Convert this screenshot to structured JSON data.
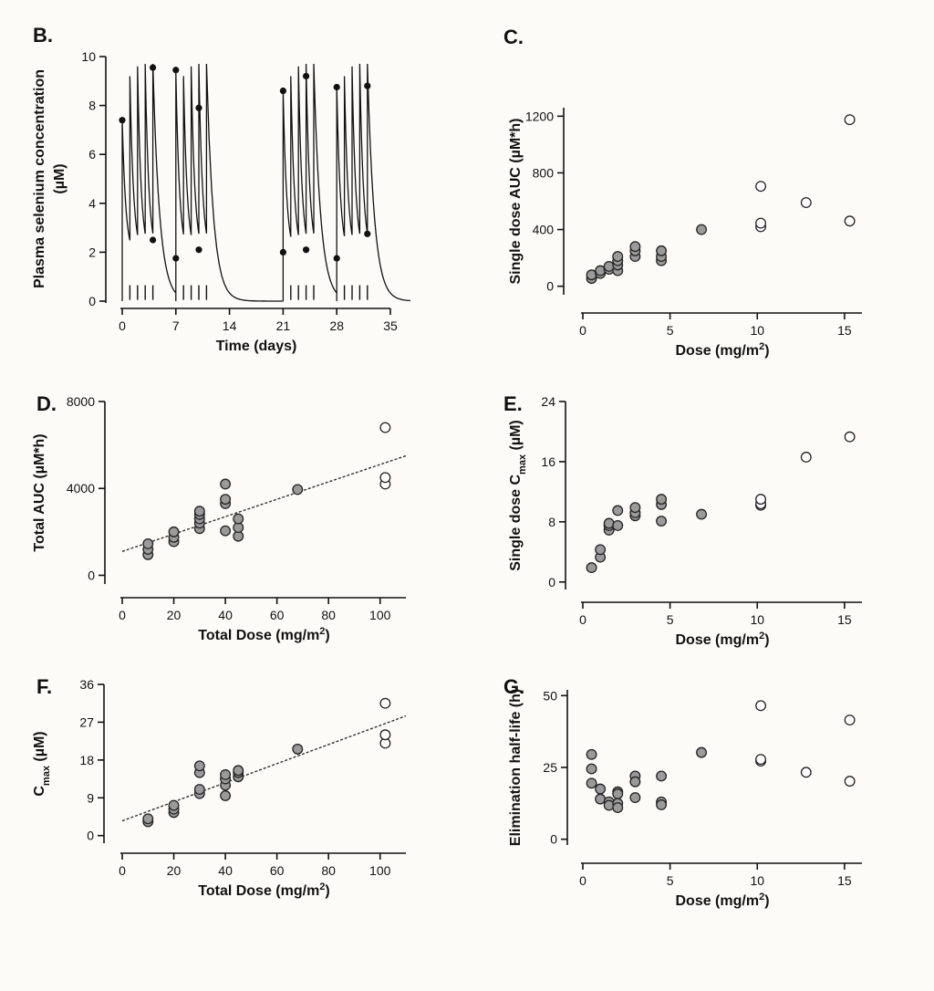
{
  "chart_data": [
    {
      "id": "B",
      "type": "line",
      "panel_label": "B.",
      "xlabel": "Time (days)",
      "ylabel_line1": "Plasma selenium concentration",
      "ylabel_line2": "(µM)",
      "xlim": [
        0,
        35
      ],
      "ylim": [
        0,
        10
      ],
      "xticks": [
        0,
        7,
        14,
        21,
        28,
        35
      ],
      "yticks": [
        0,
        2,
        4,
        6,
        8,
        10
      ],
      "dose_cycles": [
        {
          "start": 0,
          "doses": 5,
          "peaks": [
            7.4,
            9.2,
            9.6,
            9.7,
            9.7
          ],
          "min": 1.8
        },
        {
          "start": 7,
          "doses": 5,
          "peaks": [
            9.4,
            9.2,
            9.6,
            9.7,
            9.7
          ],
          "min": 1.8
        },
        {
          "start": 21,
          "doses": 5,
          "peaks": [
            8.6,
            9.2,
            9.6,
            9.7,
            9.7
          ],
          "min": 1.8
        },
        {
          "start": 28,
          "doses": 5,
          "peaks": [
            8.8,
            9.2,
            9.6,
            9.7,
            9.7
          ],
          "min": 1.8
        }
      ],
      "markers": [
        {
          "x": 0,
          "y": 7.4
        },
        {
          "x": 4,
          "y": 9.55
        },
        {
          "x": 4,
          "y": 2.5
        },
        {
          "x": 7,
          "y": 9.45
        },
        {
          "x": 7,
          "y": 1.75
        },
        {
          "x": 10,
          "y": 7.9
        },
        {
          "x": 10,
          "y": 2.1
        },
        {
          "x": 21,
          "y": 8.6
        },
        {
          "x": 21,
          "y": 2.0
        },
        {
          "x": 24,
          "y": 9.2
        },
        {
          "x": 24,
          "y": 2.1
        },
        {
          "x": 28,
          "y": 8.75
        },
        {
          "x": 28,
          "y": 1.75
        },
        {
          "x": 32,
          "y": 8.8
        },
        {
          "x": 32,
          "y": 2.75
        }
      ],
      "dose_times": [
        1,
        2,
        3,
        4,
        8,
        9,
        10,
        11,
        22,
        23,
        24,
        25,
        29,
        30,
        31,
        32
      ]
    },
    {
      "id": "C",
      "type": "scatter",
      "panel_label": "C.",
      "xlabel": "Dose (mg/m",
      "xlabel_sup": "2",
      "ylabel": "Single dose AUC (µM*h)",
      "xlim": [
        0,
        16
      ],
      "ylim": [
        -60,
        1260
      ],
      "xticks": [
        0,
        5,
        10,
        15
      ],
      "yticks": [
        0,
        400,
        800,
        1200
      ],
      "series": [
        {
          "name": "filled",
          "points": [
            [
              0.5,
              55
            ],
            [
              0.5,
              80
            ],
            [
              1,
              90
            ],
            [
              1,
              110
            ],
            [
              1.5,
              120
            ],
            [
              1.5,
              140
            ],
            [
              2,
              110
            ],
            [
              2,
              150
            ],
            [
              2,
              180
            ],
            [
              2,
              210
            ],
            [
              3,
              210
            ],
            [
              3,
              250
            ],
            [
              3,
              280
            ],
            [
              4.5,
              180
            ],
            [
              4.5,
              210
            ],
            [
              4.5,
              250
            ],
            [
              6.8,
              400
            ]
          ]
        },
        {
          "name": "open",
          "points": [
            [
              10.2,
              420
            ],
            [
              10.2,
              445
            ],
            [
              10.2,
              705
            ],
            [
              12.8,
              590
            ],
            [
              15.3,
              460
            ],
            [
              15.3,
              1175
            ]
          ]
        }
      ]
    },
    {
      "id": "D",
      "type": "scatter",
      "panel_label": "D.",
      "xlabel": "Total Dose (mg/m",
      "xlabel_sup": "2",
      "ylabel": "Total AUC (µM*h)",
      "xlim": [
        0,
        110
      ],
      "ylim": [
        -400,
        8000
      ],
      "xticks": [
        0,
        20,
        40,
        60,
        80,
        100
      ],
      "yticks": [
        0,
        4000,
        8000
      ],
      "fit_line": {
        "x": [
          0,
          110
        ],
        "y": [
          1100,
          5500
        ]
      },
      "series": [
        {
          "name": "filled",
          "points": [
            [
              10,
              950
            ],
            [
              10,
              1200
            ],
            [
              10,
              1450
            ],
            [
              20,
              1550
            ],
            [
              20,
              1750
            ],
            [
              20,
              2000
            ],
            [
              30,
              2150
            ],
            [
              30,
              2400
            ],
            [
              30,
              2600
            ],
            [
              30,
              2800
            ],
            [
              30,
              2950
            ],
            [
              40,
              2050
            ],
            [
              40,
              3300
            ],
            [
              40,
              3500
            ],
            [
              40,
              4200
            ],
            [
              45,
              1800
            ],
            [
              45,
              2200
            ],
            [
              45,
              2600
            ],
            [
              68,
              3950
            ]
          ]
        },
        {
          "name": "open",
          "points": [
            [
              102,
              4200
            ],
            [
              102,
              4500
            ],
            [
              102,
              6800
            ]
          ]
        }
      ]
    },
    {
      "id": "E",
      "type": "scatter",
      "panel_label": "E.",
      "xlabel": "Dose (mg/m",
      "xlabel_sup": "2",
      "ylabel": "Single dose C",
      "ylabel_sub": "max",
      "ylabel_unit": "(µM)",
      "xlim": [
        0,
        16
      ],
      "ylim": [
        -1,
        24
      ],
      "xticks": [
        0,
        5,
        10,
        15
      ],
      "yticks": [
        0,
        8,
        16,
        24
      ],
      "series": [
        {
          "name": "filled",
          "points": [
            [
              0.5,
              1.9
            ],
            [
              1,
              3.3
            ],
            [
              1,
              4.3
            ],
            [
              1.5,
              6.9
            ],
            [
              1.5,
              7.5
            ],
            [
              1.5,
              7.8
            ],
            [
              2,
              7.5
            ],
            [
              2,
              9.5
            ],
            [
              3,
              8.8
            ],
            [
              3,
              9.2
            ],
            [
              3,
              9.9
            ],
            [
              4.5,
              8.1
            ],
            [
              4.5,
              10.3
            ],
            [
              4.5,
              11
            ],
            [
              6.8,
              9
            ]
          ]
        },
        {
          "name": "open",
          "points": [
            [
              10.2,
              10.2
            ],
            [
              10.2,
              10.4
            ],
            [
              10.2,
              11
            ],
            [
              12.8,
              16.6
            ],
            [
              15.3,
              19.3
            ]
          ]
        }
      ]
    },
    {
      "id": "F",
      "type": "scatter",
      "panel_label": "F.",
      "xlabel": "Total Dose (mg/m",
      "xlabel_sup": "2",
      "ylabel": "C",
      "ylabel_sub": "max",
      "ylabel_unit": "(µM)",
      "xlim": [
        0,
        110
      ],
      "ylim": [
        -1.8,
        36
      ],
      "xticks": [
        0,
        20,
        40,
        60,
        80,
        100
      ],
      "yticks": [
        0,
        9,
        18,
        27,
        36
      ],
      "fit_line": {
        "x": [
          0,
          110
        ],
        "y": [
          3.5,
          28.5
        ]
      },
      "series": [
        {
          "name": "filled",
          "points": [
            [
              10,
              3.3
            ],
            [
              10,
              4
            ],
            [
              20,
              5.5
            ],
            [
              20,
              6.3
            ],
            [
              20,
              7.2
            ],
            [
              30,
              10
            ],
            [
              30,
              11
            ],
            [
              30,
              15
            ],
            [
              30,
              16.6
            ],
            [
              40,
              9.5
            ],
            [
              40,
              12
            ],
            [
              40,
              13.5
            ],
            [
              40,
              14.5
            ],
            [
              45,
              14
            ],
            [
              45,
              15
            ],
            [
              45,
              15.5
            ],
            [
              68,
              20.6
            ]
          ]
        },
        {
          "name": "open",
          "points": [
            [
              102,
              22
            ],
            [
              102,
              24
            ],
            [
              102,
              31.5
            ]
          ]
        }
      ]
    },
    {
      "id": "G",
      "type": "scatter",
      "panel_label": "G.",
      "xlabel": "Dose (mg/m",
      "xlabel_sup": "2",
      "ylabel": "Elimination half-life (h)",
      "xlim": [
        0,
        16
      ],
      "ylim": [
        -2,
        52
      ],
      "xticks": [
        0,
        5,
        10,
        15
      ],
      "yticks": [
        0,
        25,
        50
      ],
      "series": [
        {
          "name": "filled",
          "points": [
            [
              0.5,
              29.5
            ],
            [
              0.5,
              24.5
            ],
            [
              0.5,
              19.5
            ],
            [
              1,
              17.5
            ],
            [
              1,
              14
            ],
            [
              1.5,
              13
            ],
            [
              1.5,
              11.8
            ],
            [
              2,
              16.5
            ],
            [
              2,
              15.8
            ],
            [
              2,
              12.5
            ],
            [
              2,
              11
            ],
            [
              3,
              22
            ],
            [
              3,
              20
            ],
            [
              3,
              14.5
            ],
            [
              4.5,
              22
            ],
            [
              4.5,
              13
            ],
            [
              4.5,
              12
            ],
            [
              6.8,
              30.2
            ]
          ]
        },
        {
          "name": "open",
          "points": [
            [
              10.2,
              27.2
            ],
            [
              10.2,
              27.8
            ],
            [
              10.2,
              46.5
            ],
            [
              12.8,
              23.3
            ],
            [
              15.3,
              41.5
            ],
            [
              15.3,
              20.2
            ]
          ]
        }
      ]
    }
  ]
}
